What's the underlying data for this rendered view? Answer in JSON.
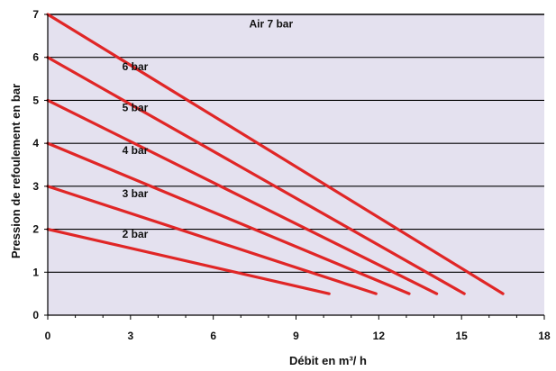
{
  "chart_data": {
    "type": "line",
    "xlabel": "Débit en m³/ h",
    "ylabel": "Pression de refoulement en bar",
    "xlim": [
      0,
      18
    ],
    "ylim": [
      0,
      7
    ],
    "x_ticks": [
      "0",
      "3",
      "6",
      "9",
      "12",
      "15",
      "18"
    ],
    "y_ticks": [
      "0",
      "1",
      "2",
      "3",
      "4",
      "5",
      "6",
      "7"
    ],
    "grid": "horizontal",
    "colors": {
      "plot_bg": "#e4e1ef",
      "line": "#e02626",
      "grid": "#000000"
    },
    "series": [
      {
        "name": "2 bar",
        "x": [
          0,
          10.2
        ],
        "y": [
          2,
          0.5
        ],
        "label_at": [
          2.7,
          1.8
        ]
      },
      {
        "name": "3 bar",
        "x": [
          0,
          11.9
        ],
        "y": [
          3,
          0.5
        ],
        "label_at": [
          2.7,
          2.75
        ]
      },
      {
        "name": "4 bar",
        "x": [
          0,
          13.1
        ],
        "y": [
          4,
          0.5
        ],
        "label_at": [
          2.7,
          3.75
        ]
      },
      {
        "name": "5 bar",
        "x": [
          0,
          14.1
        ],
        "y": [
          5,
          0.5
        ],
        "label_at": [
          2.7,
          4.75
        ]
      },
      {
        "name": "6 bar",
        "x": [
          0,
          15.1
        ],
        "y": [
          6,
          0.5
        ],
        "label_at": [
          2.7,
          5.7
        ]
      },
      {
        "name": "Air  7 bar",
        "x": [
          0,
          16.5
        ],
        "y": [
          7,
          0.5
        ],
        "label_at": [
          7.3,
          6.7
        ]
      }
    ]
  }
}
